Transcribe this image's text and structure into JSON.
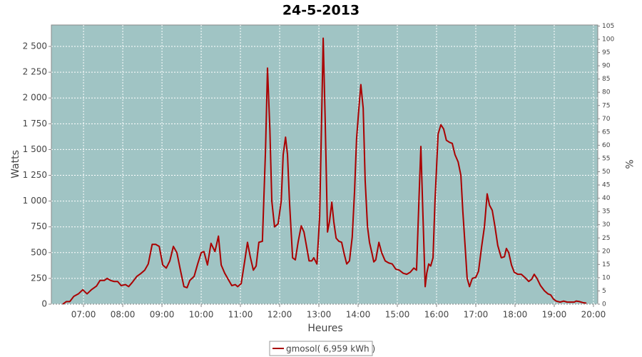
{
  "chart_data": {
    "type": "line",
    "title": "24-5-2013",
    "x_label": "Heures",
    "y_label": "Watts",
    "y2_label": "%",
    "xlim": [
      6.18,
      20.11
    ],
    "xticks": [
      {
        "value": 7,
        "label": "07:00"
      },
      {
        "value": 8,
        "label": "08:00"
      },
      {
        "value": 9,
        "label": "09:00"
      },
      {
        "value": 10,
        "label": "10:00"
      },
      {
        "value": 11,
        "label": "11:00"
      },
      {
        "value": 12,
        "label": "12:00"
      },
      {
        "value": 13,
        "label": "13:00"
      },
      {
        "value": 14,
        "label": "14:00"
      },
      {
        "value": 15,
        "label": "15:00"
      },
      {
        "value": 16,
        "label": "16:00"
      },
      {
        "value": 17,
        "label": "17:00"
      },
      {
        "value": 18,
        "label": "18:00"
      },
      {
        "value": 19,
        "label": "19:00"
      },
      {
        "value": 20,
        "label": "20:00"
      }
    ],
    "ylim": [
      0,
      2708
    ],
    "yticks": [
      0,
      250,
      500,
      750,
      {
        "value": 1000,
        "label": "1 000"
      },
      {
        "value": 1250,
        "label": "1 250"
      },
      {
        "value": 1500,
        "label": "1 500"
      },
      {
        "value": 1750,
        "label": "1 750"
      },
      {
        "value": 2000,
        "label": "2 000"
      },
      {
        "value": 2250,
        "label": "2 250"
      },
      {
        "value": 2500,
        "label": "2 500"
      }
    ],
    "y2lim": [
      0,
      105.4
    ],
    "y2ticks": [
      0,
      5,
      10,
      15,
      20,
      25,
      30,
      35,
      40,
      45,
      50,
      55,
      60,
      65,
      70,
      75,
      80,
      85,
      90,
      95,
      100,
      105
    ],
    "grid": true,
    "background": "#a0c4c4",
    "x": [
      6.47,
      6.56,
      6.65,
      6.75,
      6.87,
      6.98,
      7.09,
      7.2,
      7.33,
      7.42,
      7.53,
      7.6,
      7.69,
      7.78,
      7.87,
      7.96,
      8.07,
      8.15,
      8.24,
      8.36,
      8.47,
      8.56,
      8.65,
      8.75,
      8.84,
      8.93,
      9.02,
      9.11,
      9.2,
      9.29,
      9.38,
      9.47,
      9.56,
      9.64,
      9.71,
      9.82,
      9.91,
      10.0,
      10.07,
      10.16,
      10.25,
      10.35,
      10.44,
      10.51,
      10.6,
      10.69,
      10.78,
      10.87,
      10.93,
      11.02,
      11.11,
      11.18,
      11.25,
      11.33,
      11.4,
      11.47,
      11.56,
      11.64,
      11.69,
      11.75,
      11.8,
      11.87,
      11.96,
      12.04,
      12.09,
      12.15,
      12.2,
      12.25,
      12.33,
      12.4,
      12.47,
      12.55,
      12.62,
      12.69,
      12.75,
      12.82,
      12.87,
      12.95,
      13.02,
      13.07,
      13.11,
      13.16,
      13.22,
      13.27,
      13.33,
      13.38,
      13.44,
      13.51,
      13.58,
      13.65,
      13.71,
      13.78,
      13.85,
      13.91,
      13.96,
      14.02,
      14.07,
      14.13,
      14.18,
      14.24,
      14.29,
      14.35,
      14.4,
      14.45,
      14.53,
      14.6,
      14.69,
      14.78,
      14.87,
      14.96,
      15.05,
      15.15,
      15.24,
      15.33,
      15.42,
      15.49,
      15.55,
      15.6,
      15.65,
      15.71,
      15.75,
      15.8,
      15.85,
      15.91,
      15.96,
      16.04,
      16.11,
      16.18,
      16.25,
      16.33,
      16.4,
      16.47,
      16.55,
      16.62,
      16.67,
      16.73,
      16.78,
      16.84,
      16.91,
      17.0,
      17.07,
      17.15,
      17.22,
      17.29,
      17.35,
      17.42,
      17.49,
      17.56,
      17.65,
      17.73,
      17.78,
      17.84,
      17.91,
      17.98,
      18.07,
      18.16,
      18.25,
      18.35,
      18.42,
      18.49,
      18.56,
      18.65,
      18.75,
      18.84,
      18.91,
      18.98,
      19.05,
      19.15,
      19.24,
      19.33,
      19.42,
      19.51,
      19.56,
      19.64,
      19.73,
      19.82
    ],
    "series": [
      {
        "name": "gmosol( 6,959 kWh )",
        "color": "#aa0000",
        "values": [
          0,
          25,
          25,
          75,
          100,
          140,
          100,
          140,
          175,
          230,
          230,
          250,
          230,
          220,
          220,
          180,
          190,
          170,
          210,
          270,
          300,
          330,
          390,
          580,
          580,
          560,
          380,
          350,
          420,
          560,
          500,
          330,
          170,
          160,
          230,
          270,
          390,
          500,
          510,
          380,
          590,
          510,
          660,
          380,
          300,
          240,
          180,
          190,
          170,
          200,
          420,
          600,
          460,
          330,
          370,
          600,
          610,
          1500,
          2290,
          1700,
          1000,
          750,
          780,
          1000,
          1450,
          1620,
          1450,
          1000,
          450,
          430,
          600,
          760,
          700,
          550,
          420,
          420,
          450,
          390,
          850,
          1800,
          2580,
          1800,
          700,
          800,
          990,
          800,
          640,
          610,
          600,
          480,
          390,
          420,
          650,
          1100,
          1600,
          1900,
          2130,
          1900,
          1200,
          750,
          600,
          500,
          410,
          430,
          600,
          500,
          420,
          400,
          390,
          340,
          330,
          300,
          290,
          310,
          350,
          330,
          1000,
          1530,
          900,
          170,
          300,
          390,
          370,
          450,
          1000,
          1650,
          1740,
          1700,
          1590,
          1570,
          1560,
          1450,
          1380,
          1250,
          900,
          550,
          250,
          170,
          250,
          260,
          320,
          560,
          750,
          1070,
          960,
          910,
          750,
          570,
          450,
          460,
          540,
          500,
          380,
          310,
          290,
          290,
          260,
          220,
          240,
          290,
          250,
          180,
          130,
          100,
          90,
          50,
          30,
          20,
          30,
          20,
          20,
          20,
          30,
          25,
          15,
          10
        ]
      }
    ]
  }
}
